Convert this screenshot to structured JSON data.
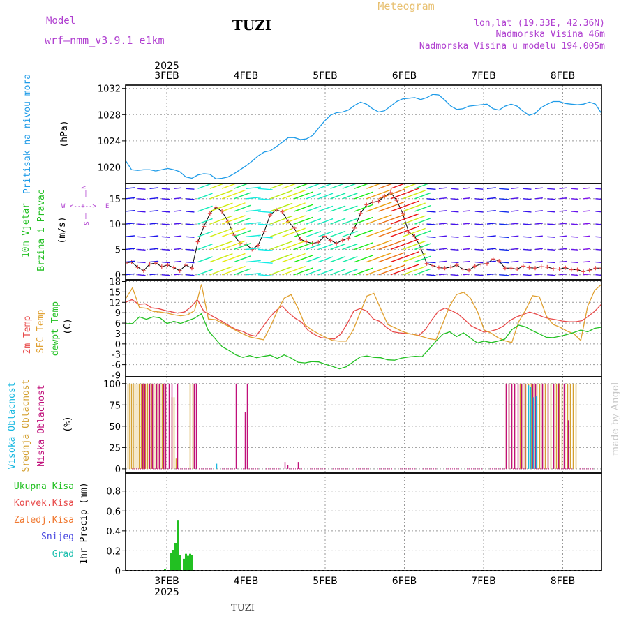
{
  "header": {
    "model_label": "Model",
    "model_value": "wrf—nmm_v3.9.1  e1km",
    "station": "TUZI",
    "title": "Meteogram",
    "coords": "lon,lat (19.33E, 42.36N)",
    "elevation": "Nadmorska Visina 46m",
    "model_elevation": "Nadmorska Visina u modelu 194.005m",
    "year_top": "2025",
    "year_bottom": "2025",
    "footer_station": "TUZI",
    "watermark": "made by Angel"
  },
  "colors": {
    "pressure": "#1e9be8",
    "temp2m": "#e84a4a",
    "sfc": "#e0a030",
    "dewpt": "#22c022",
    "high_cloud": "#18b8e0",
    "mid_cloud": "#d4a030",
    "low_cloud": "#c0107a",
    "precip": "#22c022",
    "label_magenta": "#b040d0",
    "convective": "#e84a4a",
    "frozen": "#f07830",
    "snow": "#4848e0",
    "graupel": "#20c0b0"
  },
  "chart_data": {
    "type": "meteogram",
    "date_ticks": [
      "3FEB",
      "4FEB",
      "5FEB",
      "6FEB",
      "7FEB",
      "8FEB"
    ],
    "panels": [
      {
        "id": "pressure",
        "type": "line",
        "ylabel_main": "Pritisak na nivou mora",
        "unit": "(hPa)",
        "yticks": [
          1020,
          1024,
          1028,
          1032
        ],
        "ylim": [
          1017.5,
          1032.5
        ],
        "series": [
          {
            "values": [
              1021,
              1019.6,
              1019.5,
              1019.6,
              1019.6,
              1019.4,
              1019.6,
              1019.8,
              1019.6,
              1019.3,
              1018.5,
              1018.3,
              1018.8,
              1019,
              1018.9,
              1018.2,
              1018.3,
              1018.5,
              1019,
              1019.6,
              1020.2,
              1020.9,
              1021.7,
              1022.3,
              1022.5,
              1023.1,
              1023.8,
              1024.5,
              1024.5,
              1024.2,
              1024.3,
              1024.8,
              1025.9,
              1027,
              1027.9,
              1028.3,
              1028.4,
              1028.7,
              1029.4,
              1029.9,
              1029.6,
              1028.9,
              1028.4,
              1028.6,
              1029.3,
              1030,
              1030.4,
              1030.5,
              1030.6,
              1030.3,
              1030.6,
              1031.1,
              1031,
              1030.2,
              1029.3,
              1028.8,
              1028.9,
              1029.3,
              1029.4,
              1029.5,
              1029.6,
              1028.9,
              1028.7,
              1029.3,
              1029.6,
              1029.3,
              1028.5,
              1027.9,
              1028.2,
              1029.1,
              1029.6,
              1030,
              1030,
              1029.7,
              1029.6,
              1029.5,
              1029.6,
              1029.9,
              1029.6,
              1028.2
            ]
          }
        ]
      },
      {
        "id": "wind",
        "type": "barbs-line",
        "ylabel_main": "10m Vjetar",
        "ylabel_sub": "Brzina i Pravac",
        "unit": "(m/s)",
        "dir_legend": [
          "N",
          "W",
          "E",
          "S"
        ],
        "yticks": [
          0,
          5,
          10,
          15
        ],
        "ylim": [
          -1,
          18
        ],
        "series": [
          {
            "name": "speed",
            "values": [
              2.3,
              2.5,
              1.5,
              0.8,
              2.1,
              2.3,
              1.6,
              1.9,
              1.4,
              0.8,
              1.9,
              1.3,
              6.5,
              9.5,
              12.1,
              13.3,
              12.5,
              10.5,
              7.8,
              6.2,
              6,
              5,
              5.8,
              8.5,
              11.8,
              12.8,
              12.4,
              10.5,
              9.2,
              7,
              6.5,
              6.2,
              6.4,
              7.6,
              6.8,
              6.2,
              6.8,
              7.2,
              9.2,
              12.1,
              13.8,
              14.3,
              14.5,
              15.5,
              16.2,
              14.7,
              12.1,
              8.4,
              7.6,
              5.3,
              2.2,
              1.8,
              1.4,
              1.3,
              1.5,
              1.9,
              1.1,
              0.9,
              1.7,
              2.1,
              2.2,
              3.1,
              2.7,
              1.3,
              1.3,
              1.1,
              1.7,
              1.4,
              1.3,
              1.6,
              1.5,
              1.2,
              1.1,
              1.4,
              1,
              1,
              0.6,
              0.9,
              1.3,
              1.3
            ]
          }
        ]
      },
      {
        "id": "temperature",
        "type": "line",
        "ylabel_lines": [
          "2m Temp",
          "SFC Temp",
          "dewpt Temp"
        ],
        "unit": "(C)",
        "yticks": [
          -9,
          -6,
          -3,
          0,
          3,
          6,
          9,
          12,
          15,
          18
        ],
        "ylim": [
          -9.5,
          18.5
        ],
        "series": [
          {
            "name": "2m Temp",
            "values": [
              12,
              12.8,
              11.4,
              11.6,
              10.4,
              10.2,
              9.7,
              9.3,
              8.9,
              9.2,
              10.6,
              12.8,
              9.4,
              8.3,
              7.3,
              6.3,
              5.1,
              4.1,
              3.6,
              2.6,
              2.2,
              4.8,
              7.4,
              9.5,
              11,
              9,
              7.4,
              6.3,
              3.9,
              2.7,
              1.8,
              1.6,
              1.4,
              2.8,
              5.8,
              9.5,
              10.2,
              9.5,
              7.2,
              6.5,
              4.8,
              3.5,
              3.2,
              3,
              2.8,
              2.4,
              4.2,
              7,
              9.5,
              10.3,
              9.6,
              8.6,
              7,
              5.2,
              4.3,
              3.4,
              3.7,
              4.2,
              5.2,
              6.8,
              7.8,
              8.5,
              9.2,
              8.6,
              7.8,
              7.3,
              7,
              6.6,
              6.4,
              6.4,
              6.7,
              8,
              9.5,
              11.5
            ]
          },
          {
            "name": "SFC Temp",
            "values": [
              13,
              16.2,
              10.5,
              10.3,
              9.4,
              9.2,
              8.9,
              8.4,
              8.1,
              8.4,
              9.6,
              17.2,
              7.2,
              7,
              6,
              5,
              3.9,
              2.9,
              2,
              1.6,
              1.2,
              5,
              9.5,
              13.2,
              14.2,
              10.3,
              5.5,
              4,
              2.9,
              1.9,
              1,
              0.8,
              0.8,
              4,
              9,
              13.8,
              14.6,
              10.1,
              5.6,
              4.7,
              3.7,
              3,
              2.6,
              2.1,
              1.5,
              1.2,
              6,
              11,
              14.2,
              14.9,
              13.2,
              9.4,
              4,
              3.1,
              1.8,
              0.9,
              0.4,
              6.4,
              9.8,
              13.9,
              13.6,
              8.1,
              5.6,
              4.8,
              3.7,
              2.9,
              1,
              10.9,
              15.4,
              17.2
            ]
          },
          {
            "name": "dewpt Temp",
            "values": [
              5.8,
              5.9,
              7.8,
              7.1,
              7.8,
              7.5,
              5.9,
              6.5,
              5.9,
              6.7,
              7.4,
              8.7,
              3.8,
              1.5,
              -0.8,
              -1.9,
              -3.2,
              -3.9,
              -3.4,
              -4,
              -3.6,
              -3.3,
              -4.2,
              -3.2,
              -4.1,
              -5.3,
              -5.5,
              -5.1,
              -5.2,
              -5.9,
              -6.5,
              -7.2,
              -6.6,
              -5.2,
              -3.8,
              -3.5,
              -3.9,
              -4,
              -4.6,
              -4.7,
              -4.1,
              -3.8,
              -3.6,
              -3.7,
              -1.5,
              0.8,
              2.8,
              3.5,
              2.1,
              3.2,
              1.7,
              0.3,
              0.8,
              0.4,
              0.8,
              1.4,
              4.1,
              5.4,
              4.9,
              3.8,
              2.9,
              1.9,
              1.8,
              2.2,
              2.7,
              3.3,
              4,
              3.5,
              4.5,
              4.8
            ]
          }
        ]
      },
      {
        "id": "clouds",
        "type": "bar",
        "ylabel_lines": [
          "Visoka Oblacnost",
          "Srednja Oblacnost",
          "Niska Oblacnost"
        ],
        "unit": "(%)",
        "yticks": [
          0,
          25,
          50,
          75,
          100
        ],
        "ylim": [
          -5,
          108
        ],
        "series": [
          {
            "name": "Srednja Oblacnost",
            "values": [
              [
                3,
                100
              ],
              [
                5.5,
                100
              ],
              [
                8,
                100
              ],
              [
                10.5,
                100
              ],
              [
                13,
                100
              ],
              [
                16,
                100
              ],
              [
                19,
                100
              ],
              [
                22,
                100
              ],
              [
                25,
                100
              ],
              [
                28,
                100
              ],
              [
                31,
                100
              ],
              [
                34,
                100
              ],
              [
                37,
                100
              ],
              [
                40,
                100
              ],
              [
                43,
                100
              ],
              [
                46,
                100
              ],
              [
                49,
                100
              ],
              [
                52,
                100
              ],
              [
                56,
                100
              ],
              [
                66,
                84
              ],
              [
                69,
                84
              ],
              [
                72,
                12
              ],
              [
                92,
                100
              ],
              [
                96,
                100
              ],
              [
                545,
                100
              ],
              [
                549,
                100
              ],
              [
                553,
                100
              ],
              [
                557,
                100
              ],
              [
                565,
                100
              ],
              [
                569,
                100
              ],
              [
                573,
                100
              ],
              [
                577,
                100
              ],
              [
                581,
                100
              ],
              [
                585,
                100
              ],
              [
                589,
                100
              ],
              [
                593,
                100
              ],
              [
                597,
                100
              ],
              [
                601,
                100
              ],
              [
                605,
                100
              ],
              [
                609,
                100
              ],
              [
                613,
                100
              ],
              [
                617,
                100
              ],
              [
                621,
                100
              ],
              [
                625,
                100
              ],
              [
                629,
                100
              ],
              [
                633,
                100
              ],
              [
                637,
                100
              ],
              [
                641,
                100
              ],
              [
                645,
                100
              ]
            ]
          },
          {
            "name": "Niska Oblacnost",
            "values": [
              [
                24,
                100
              ],
              [
                27,
                100
              ],
              [
                34,
                100
              ],
              [
                38,
                100
              ],
              [
                44,
                100
              ],
              [
                48,
                100
              ],
              [
                54,
                100
              ],
              [
                57,
                100
              ],
              [
                62,
                100
              ],
              [
                66,
                100
              ],
              [
                74,
                100
              ],
              [
                98,
                100
              ],
              [
                101,
                100
              ],
              [
                158,
                100
              ],
              [
                171,
                67
              ],
              [
                174,
                100
              ],
              [
                228,
                8
              ],
              [
                232,
                4
              ],
              [
                247,
                8
              ],
              [
                545,
                100
              ],
              [
                549,
                100
              ],
              [
                553,
                100
              ],
              [
                557,
                100
              ],
              [
                562,
                100
              ],
              [
                567,
                100
              ],
              [
                572,
                100
              ],
              [
                583,
                100
              ],
              [
                587,
                100
              ],
              [
                597,
                100
              ],
              [
                605,
                100
              ],
              [
                613,
                100
              ],
              [
                620,
                100
              ],
              [
                628,
                100
              ],
              [
                634,
                57
              ]
            ]
          },
          {
            "name": "Visoka Oblacnost",
            "values": [
              [
                130,
                6
              ],
              [
                577,
                98
              ],
              [
                580,
                96
              ],
              [
                584,
                84
              ],
              [
                588,
                85
              ]
            ]
          }
        ]
      },
      {
        "id": "precip",
        "type": "bar",
        "ylabel_main": "1hr Precip",
        "unit": "(mm)",
        "legend": [
          "Ukupna Kisa",
          "Konvek.Kisa",
          "Zaledj.Kisa",
          "Snijeg",
          "Grad"
        ],
        "yticks": [
          0,
          0.2,
          0.4,
          0.6,
          0.8
        ],
        "ylim": [
          0,
          0.98
        ],
        "series": [
          {
            "name": "Ukupna Kisa",
            "values": [
              [
                55,
                0.02
              ],
              [
                64,
                0.18
              ],
              [
                67,
                0.21
              ],
              [
                70,
                0.28
              ],
              [
                73,
                0.51
              ],
              [
                77,
                0.16
              ],
              [
                82,
                0.12
              ],
              [
                85,
                0.17
              ],
              [
                88,
                0.15
              ],
              [
                91,
                0.17
              ],
              [
                94,
                0.16
              ]
            ]
          }
        ]
      }
    ]
  }
}
